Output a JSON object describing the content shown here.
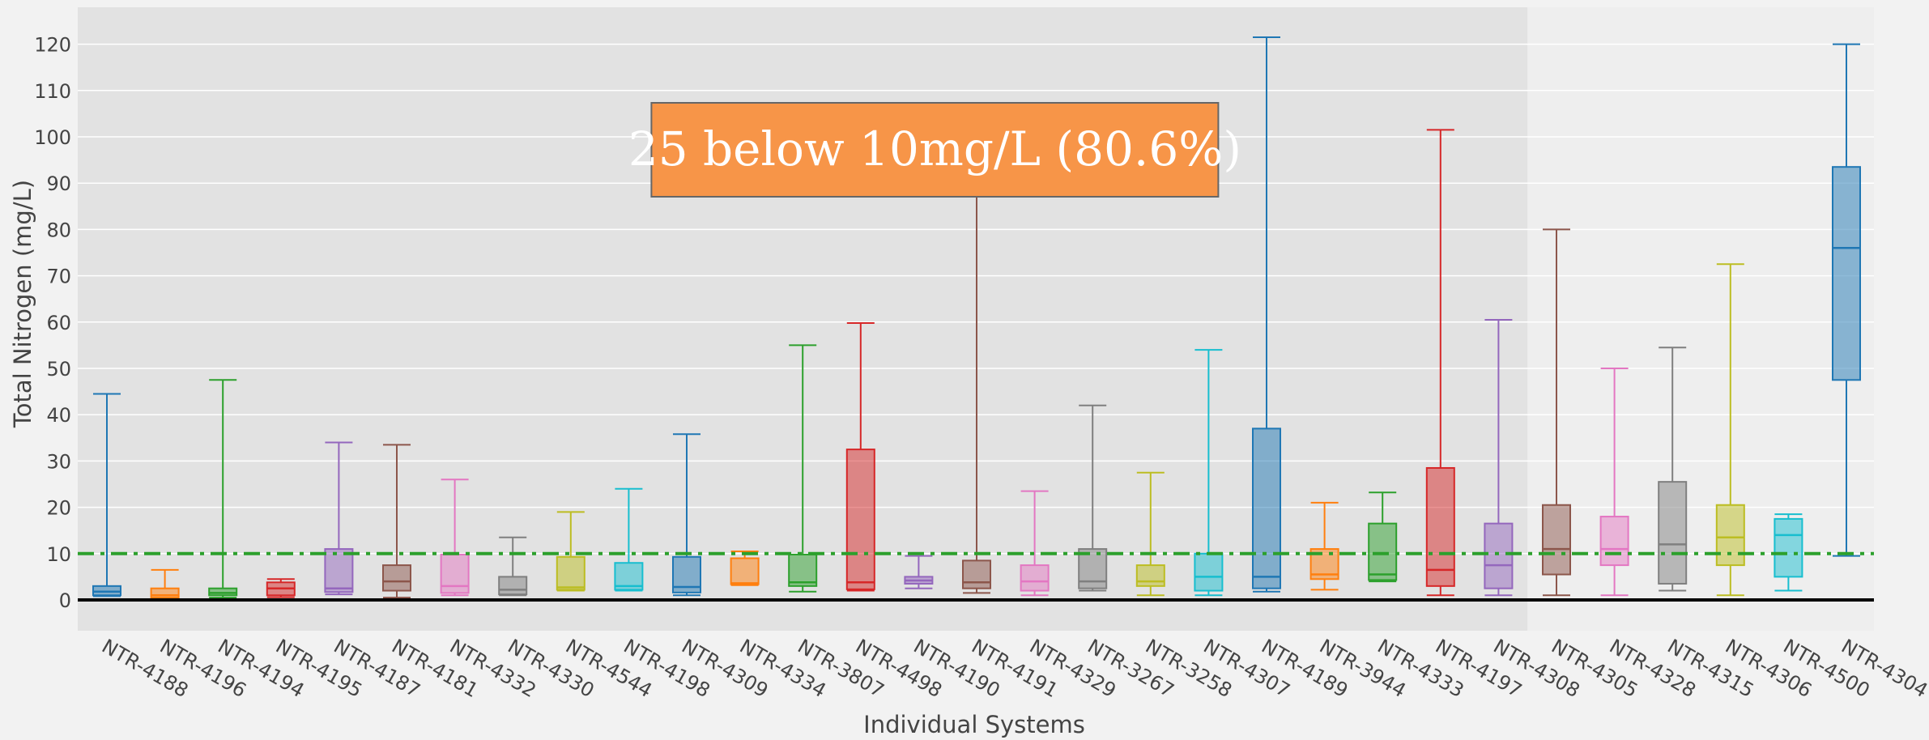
{
  "chart_data": {
    "type": "box",
    "xlabel": "Individual Systems",
    "ylabel": "Total Nitrogen (mg/L)",
    "ylim": [
      -7,
      130
    ],
    "yticks": [
      0,
      10,
      20,
      30,
      40,
      50,
      60,
      70,
      80,
      90,
      100,
      110,
      120
    ],
    "reference_line": {
      "y": 10,
      "style": "dash-dot",
      "color": "#2ca02c"
    },
    "highlight_region": {
      "from_category": "NTR-4188",
      "to_category": "NTR-4308",
      "color": "#e2e2e2"
    },
    "annotation": {
      "text": "25 below 10mg/L (80.6%)",
      "fill": "#f79548",
      "border": "#666666",
      "anchor_category": "NTR-4190"
    },
    "grid": true,
    "legend": "none",
    "boxes": [
      {
        "name": "NTR-4188",
        "min": 0.8,
        "q1": 1,
        "median": 1.8,
        "q3": 3,
        "max": 44.5,
        "color": "#1f77b4"
      },
      {
        "name": "NTR-4196",
        "min": 0.3,
        "q1": 0.5,
        "median": 1,
        "q3": 2.5,
        "max": 6.5,
        "color": "#ff7f0e"
      },
      {
        "name": "NTR-4194",
        "min": 0.5,
        "q1": 1,
        "median": 1.5,
        "q3": 2.5,
        "max": 47.5,
        "color": "#2ca02c"
      },
      {
        "name": "NTR-4195",
        "min": 0.6,
        "q1": 1,
        "median": 2.5,
        "q3": 3.8,
        "max": 4.5,
        "color": "#d62728"
      },
      {
        "name": "NTR-4187",
        "min": 1.2,
        "q1": 1.7,
        "median": 2.5,
        "q3": 11,
        "max": 34,
        "color": "#9467bd"
      },
      {
        "name": "NTR-4181",
        "min": 0.5,
        "q1": 2,
        "median": 4,
        "q3": 7.5,
        "max": 33.5,
        "color": "#8c564b"
      },
      {
        "name": "NTR-4332",
        "min": 1,
        "q1": 1.5,
        "median": 3,
        "q3": 9.8,
        "max": 26,
        "color": "#e377c2"
      },
      {
        "name": "NTR-4330",
        "min": 1,
        "q1": 1.2,
        "median": 2.2,
        "q3": 5,
        "max": 13.5,
        "color": "#7f7f7f"
      },
      {
        "name": "NTR-4544",
        "min": 2,
        "q1": 2.2,
        "median": 2.7,
        "q3": 9.3,
        "max": 19,
        "color": "#bcbd22"
      },
      {
        "name": "NTR-4198",
        "min": 2,
        "q1": 2.2,
        "median": 3,
        "q3": 8,
        "max": 24,
        "color": "#17becf"
      },
      {
        "name": "NTR-4309",
        "min": 1,
        "q1": 1.6,
        "median": 2.8,
        "q3": 9.3,
        "max": 35.8,
        "color": "#1f77b4"
      },
      {
        "name": "NTR-4334",
        "min": 3.2,
        "q1": 3.4,
        "median": 3.6,
        "q3": 9,
        "max": 10.5,
        "color": "#ff7f0e"
      },
      {
        "name": "NTR-3807",
        "min": 1.8,
        "q1": 3,
        "median": 3.8,
        "q3": 9.8,
        "max": 55,
        "color": "#2ca02c"
      },
      {
        "name": "NTR-4498",
        "min": 2,
        "q1": 2.3,
        "median": 3.8,
        "q3": 32.5,
        "max": 59.8,
        "color": "#d62728"
      },
      {
        "name": "NTR-4190",
        "min": 2.5,
        "q1": 3.5,
        "median": 4.2,
        "q3": 5,
        "max": 9.5,
        "color": "#9467bd"
      },
      {
        "name": "NTR-4191",
        "min": 1.5,
        "q1": 2.5,
        "median": 3.8,
        "q3": 8.5,
        "max": 104,
        "color": "#8c564b"
      },
      {
        "name": "NTR-4329",
        "min": 1,
        "q1": 2,
        "median": 4,
        "q3": 7.5,
        "max": 23.5,
        "color": "#e377c2"
      },
      {
        "name": "NTR-3267",
        "min": 2,
        "q1": 2.5,
        "median": 4,
        "q3": 11,
        "max": 42,
        "color": "#7f7f7f"
      },
      {
        "name": "NTR-3258",
        "min": 1,
        "q1": 3,
        "median": 4,
        "q3": 7.5,
        "max": 27.5,
        "color": "#bcbd22"
      },
      {
        "name": "NTR-4307",
        "min": 1,
        "q1": 2,
        "median": 5,
        "q3": 10,
        "max": 54,
        "color": "#17becf"
      },
      {
        "name": "NTR-4189",
        "min": 1.8,
        "q1": 2.5,
        "median": 5,
        "q3": 37,
        "max": 121.5,
        "color": "#1f77b4"
      },
      {
        "name": "NTR-3944",
        "min": 2.2,
        "q1": 4.5,
        "median": 5.5,
        "q3": 11,
        "max": 21,
        "color": "#ff7f0e"
      },
      {
        "name": "NTR-4333",
        "min": 4,
        "q1": 4.3,
        "median": 5.5,
        "q3": 16.5,
        "max": 23.2,
        "color": "#2ca02c"
      },
      {
        "name": "NTR-4197",
        "min": 1,
        "q1": 3,
        "median": 6.5,
        "q3": 28.5,
        "max": 101.5,
        "color": "#d62728"
      },
      {
        "name": "NTR-4308",
        "min": 1,
        "q1": 2.5,
        "median": 7.5,
        "q3": 16.5,
        "max": 60.5,
        "color": "#9467bd"
      },
      {
        "name": "NTR-4305",
        "min": 1,
        "q1": 5.5,
        "median": 11,
        "q3": 20.5,
        "max": 80,
        "color": "#8c564b"
      },
      {
        "name": "NTR-4328",
        "min": 1,
        "q1": 7.5,
        "median": 11,
        "q3": 18,
        "max": 50,
        "color": "#e377c2"
      },
      {
        "name": "NTR-4315",
        "min": 2,
        "q1": 3.5,
        "median": 12,
        "q3": 25.5,
        "max": 54.5,
        "color": "#7f7f7f"
      },
      {
        "name": "NTR-4306",
        "min": 1,
        "q1": 7.5,
        "median": 13.5,
        "q3": 20.5,
        "max": 72.5,
        "color": "#bcbd22"
      },
      {
        "name": "NTR-4500",
        "min": 2,
        "q1": 5,
        "median": 14,
        "q3": 17.5,
        "max": 18.5,
        "color": "#17becf"
      },
      {
        "name": "NTR-4304",
        "min": 9.5,
        "q1": 47.5,
        "median": 76,
        "q3": 93.5,
        "max": 120,
        "color": "#1f77b4"
      }
    ]
  }
}
